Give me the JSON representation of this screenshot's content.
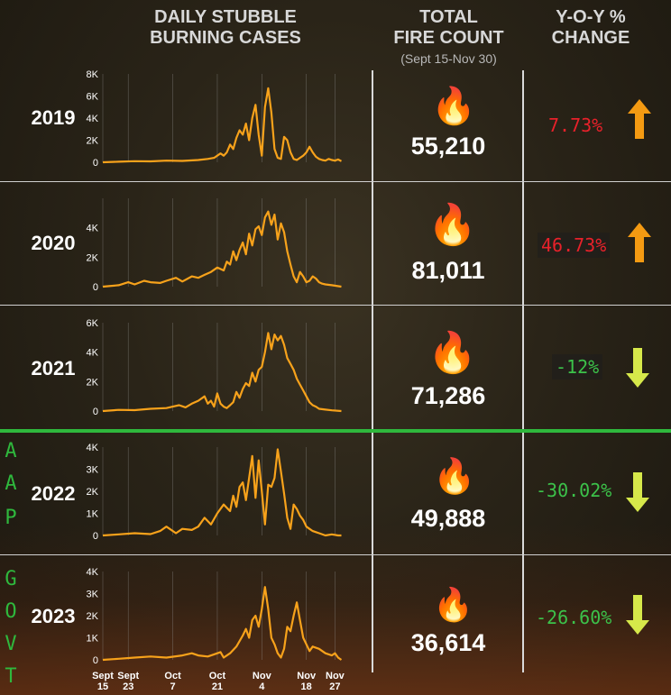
{
  "header": {
    "daily_title_1": "DAILY STUBBLE",
    "daily_title_2": "BURNING CASES",
    "total_title_1": "TOTAL",
    "total_title_2": "FIRE COUNT",
    "total_subtitle": "(Sept 15-Nov 30)",
    "yoy_title_1": "Y-O-Y %",
    "yoy_title_2": "CHANGE"
  },
  "side_label_top": [
    "A",
    "A",
    "P"
  ],
  "side_label_bottom": [
    "G",
    "O",
    "V",
    "T"
  ],
  "x_ticks": [
    {
      "l1": "Sept",
      "l2": "15",
      "day": 0
    },
    {
      "l1": "Sept",
      "l2": "23",
      "day": 8
    },
    {
      "l1": "Oct",
      "l2": "7",
      "day": 22
    },
    {
      "l1": "Oct",
      "l2": "21",
      "day": 36
    },
    {
      "l1": "Nov",
      "l2": "4",
      "day": 50
    },
    {
      "l1": "Nov",
      "l2": "18",
      "day": 64
    },
    {
      "l1": "Nov",
      "l2": "27",
      "day": 73
    }
  ],
  "colors": {
    "line": "#f7a21b",
    "increase": "#e8212a",
    "decrease": "#3cc24a",
    "up_arrow": "#f49a12",
    "down_arrow": "#d6e84a",
    "divider": "#2fb83d"
  },
  "rows": [
    {
      "year": "2019",
      "total": "55,210",
      "yoy": "7.73%",
      "direction": "up",
      "icon": "fire-emoji",
      "flame": "🔥"
    },
    {
      "year": "2020",
      "total": "81,011",
      "yoy": "46.73%",
      "direction": "up",
      "icon": "fire-emoji",
      "flame": "🔥"
    },
    {
      "year": "2021",
      "total": "71,286",
      "yoy": "-12%",
      "direction": "down",
      "icon": "fire-emoji",
      "flame": "🔥"
    },
    {
      "year": "2022",
      "total": "49,888",
      "yoy": "-30.02%",
      "direction": "down",
      "icon": "fire-emoji",
      "flame": "🔥"
    },
    {
      "year": "2023",
      "total": "36,614",
      "yoy": "-26.60%",
      "direction": "down",
      "icon": "fire-emoji",
      "flame": "🔥"
    }
  ],
  "chart_data": [
    {
      "type": "line",
      "title": "2019",
      "ylim": [
        0,
        8000
      ],
      "yticks": [
        "0",
        "2K",
        "4K",
        "6K",
        "8K"
      ],
      "xlim": [
        0,
        76
      ],
      "x": [
        0,
        5,
        10,
        15,
        20,
        25,
        30,
        33,
        35,
        37,
        38,
        39,
        40,
        41,
        42,
        43,
        44,
        45,
        46,
        47,
        48,
        49,
        50,
        51,
        52,
        53,
        54,
        55,
        56,
        57,
        58,
        59,
        60,
        61,
        62,
        63,
        64,
        65,
        66,
        67,
        68,
        69,
        70,
        71,
        72,
        73,
        74,
        75
      ],
      "y": [
        0,
        50,
        100,
        80,
        150,
        120,
        200,
        300,
        400,
        800,
        600,
        900,
        1600,
        1200,
        2200,
        2900,
        2500,
        3500,
        2000,
        4000,
        5200,
        2500,
        600,
        5000,
        6700,
        4500,
        1200,
        400,
        300,
        2300,
        2000,
        900,
        300,
        200,
        400,
        600,
        900,
        1400,
        900,
        500,
        300,
        200,
        150,
        300,
        200,
        150,
        250,
        100
      ]
    },
    {
      "type": "line",
      "title": "2020",
      "ylim": [
        0,
        6000
      ],
      "yticks": [
        "0",
        "2K",
        "4K"
      ],
      "xlim": [
        0,
        76
      ],
      "x": [
        0,
        5,
        8,
        10,
        13,
        15,
        18,
        20,
        23,
        25,
        28,
        30,
        32,
        34,
        36,
        38,
        39,
        40,
        41,
        42,
        43,
        44,
        45,
        46,
        47,
        48,
        49,
        50,
        51,
        52,
        53,
        54,
        55,
        56,
        57,
        58,
        59,
        60,
        61,
        62,
        63,
        64,
        65,
        66,
        67,
        68,
        69,
        70,
        72,
        75
      ],
      "y": [
        0,
        100,
        300,
        150,
        400,
        300,
        250,
        400,
        600,
        350,
        700,
        600,
        800,
        1000,
        1300,
        1100,
        1700,
        1500,
        2400,
        1800,
        2500,
        3000,
        2200,
        3600,
        2800,
        3900,
        4100,
        3500,
        4700,
        5100,
        4200,
        4900,
        3200,
        4300,
        3700,
        2400,
        1500,
        700,
        300,
        1000,
        700,
        300,
        400,
        700,
        550,
        300,
        200,
        150,
        100,
        0
      ]
    },
    {
      "type": "line",
      "title": "2021",
      "ylim": [
        0,
        6000
      ],
      "yticks": [
        "0",
        "2K",
        "4K",
        "6K"
      ],
      "xlim": [
        0,
        76
      ],
      "x": [
        0,
        5,
        10,
        15,
        20,
        22,
        24,
        26,
        28,
        30,
        32,
        33,
        34,
        35,
        36,
        37,
        38,
        39,
        40,
        41,
        42,
        43,
        44,
        45,
        46,
        47,
        48,
        49,
        50,
        51,
        52,
        53,
        54,
        55,
        56,
        57,
        58,
        59,
        60,
        61,
        62,
        63,
        64,
        65,
        66,
        67,
        68,
        70,
        72,
        75
      ],
      "y": [
        0,
        80,
        60,
        150,
        200,
        300,
        400,
        250,
        500,
        700,
        1000,
        500,
        700,
        300,
        1200,
        500,
        300,
        200,
        400,
        600,
        1300,
        900,
        1500,
        1900,
        1700,
        2600,
        2000,
        2800,
        3000,
        4000,
        5300,
        4200,
        5200,
        4800,
        5100,
        4500,
        3600,
        3200,
        2800,
        2200,
        1800,
        1400,
        1000,
        600,
        400,
        300,
        150,
        100,
        50,
        0
      ]
    },
    {
      "type": "line",
      "title": "2022",
      "ylim": [
        0,
        4000
      ],
      "yticks": [
        "0",
        "1K",
        "2K",
        "3K",
        "4K"
      ],
      "xlim": [
        0,
        76
      ],
      "x": [
        0,
        5,
        10,
        15,
        18,
        20,
        23,
        25,
        28,
        30,
        32,
        34,
        36,
        38,
        40,
        41,
        42,
        43,
        44,
        45,
        46,
        47,
        48,
        49,
        50,
        51,
        52,
        53,
        54,
        55,
        56,
        57,
        58,
        59,
        60,
        61,
        62,
        63,
        64,
        65,
        66,
        67,
        68,
        70,
        72,
        74,
        75
      ],
      "y": [
        0,
        50,
        100,
        60,
        200,
        400,
        100,
        300,
        250,
        400,
        800,
        500,
        1000,
        1400,
        1100,
        1800,
        1300,
        2200,
        2400,
        1600,
        2600,
        3600,
        1700,
        3400,
        2000,
        500,
        2300,
        2200,
        2600,
        3900,
        2900,
        1900,
        800,
        300,
        1400,
        1200,
        900,
        700,
        400,
        300,
        200,
        150,
        100,
        0,
        50,
        0,
        0
      ]
    },
    {
      "type": "line",
      "title": "2023",
      "ylim": [
        0,
        4000
      ],
      "yticks": [
        "0",
        "1K",
        "2K",
        "3K",
        "4K"
      ],
      "xlim": [
        0,
        76
      ],
      "x": [
        0,
        5,
        10,
        15,
        20,
        25,
        28,
        30,
        33,
        35,
        37,
        38,
        40,
        42,
        44,
        45,
        46,
        47,
        48,
        49,
        50,
        51,
        52,
        53,
        54,
        55,
        56,
        57,
        58,
        59,
        60,
        61,
        62,
        63,
        64,
        65,
        66,
        68,
        70,
        72,
        73,
        74,
        75
      ],
      "y": [
        0,
        50,
        100,
        150,
        100,
        200,
        300,
        200,
        150,
        250,
        350,
        100,
        300,
        600,
        1100,
        1400,
        1000,
        1800,
        2000,
        1500,
        2300,
        3300,
        2300,
        1000,
        700,
        300,
        100,
        500,
        1500,
        1300,
        2000,
        2600,
        1800,
        1000,
        700,
        400,
        600,
        500,
        300,
        200,
        300,
        100,
        0
      ]
    }
  ]
}
